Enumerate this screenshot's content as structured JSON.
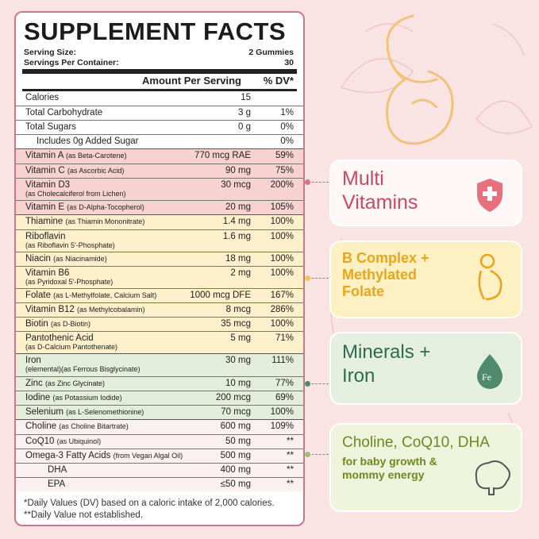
{
  "label": {
    "title": "SUPPLEMENT FACTS",
    "serving_size": {
      "label": "Serving Size:",
      "value": "2 Gummies"
    },
    "servings_per_container": {
      "label": "Servings Per Container:",
      "value": "30"
    },
    "header": {
      "amount": "Amount Per Serving",
      "dv": "% DV*"
    },
    "groups": [
      {
        "rows": [
          {
            "name": "Calories",
            "amount": "15"
          },
          {
            "name": "Total Carbohydrate",
            "amount": "3 g",
            "dv": "1%"
          },
          {
            "name": "Total Sugars",
            "amount": "0 g",
            "dv": "0%"
          },
          {
            "name": "Includes 0g Added Sugar",
            "dv": "0%"
          }
        ]
      },
      {
        "rows": [
          {
            "name": "Vitamin A",
            "note": "(as Beta-Carotene)",
            "amount": "770 mcg RAE",
            "dv": "59%"
          },
          {
            "name": "Vitamin C",
            "note": "(as Ascorbic Acid)",
            "amount": "90 mg",
            "dv": "75%"
          },
          {
            "name": "Vitamin D3",
            "sub": "(as Cholecalciferol from Lichen)",
            "amount": "30 mcg",
            "dv": "200%"
          },
          {
            "name": "Vitamin E",
            "note": "(as D-Alpha-Tocopherol)",
            "amount": "20 mg",
            "dv": "105%"
          }
        ]
      },
      {
        "rows": [
          {
            "name": "Thiamine",
            "note": "(as Thiamin Mononitrate)",
            "amount": "1.4 mg",
            "dv": "100%"
          },
          {
            "name": "Riboflavin",
            "sub": "(as Riboflavin 5'-Phosphate)",
            "amount": "1.6 mg",
            "dv": "100%"
          },
          {
            "name": "Niacin",
            "note": "(as Niacinamide)",
            "amount": "18 mg",
            "dv": "100%"
          },
          {
            "name": "Vitamin B6",
            "sub": "(as Pyridoxal 5'-Phosphate)",
            "amount": "2 mg",
            "dv": "100%"
          },
          {
            "name": "Folate",
            "note": "(as L-Methylfolate, Calcium Salt)",
            "amount": "1000 mcg DFE",
            "dv": "167%"
          },
          {
            "name": "Vitamin B12",
            "note": "(as Methylcobalamin)",
            "amount": "8 mcg",
            "dv": "286%"
          },
          {
            "name": "Biotin",
            "note": "(as D-Biotin)",
            "amount": "35 mcg",
            "dv": "100%"
          },
          {
            "name": "Pantothenic Acid",
            "sub": "(as D-Calcium Pantothenate)",
            "amount": "5 mg",
            "dv": "71%"
          }
        ]
      },
      {
        "rows": [
          {
            "name": "Iron",
            "sub": "(elemental)(as Ferrous Bisglycinate)",
            "amount": "30 mg",
            "dv": "111%"
          },
          {
            "name": "Zinc",
            "note": "(as Zinc Glycinate)",
            "amount": "10 mg",
            "dv": "77%"
          },
          {
            "name": "Iodine",
            "note": "(as Potassium Iodide)",
            "amount": "200 mcg",
            "dv": "69%"
          },
          {
            "name": "Selenium",
            "note": "(as L-Selenomethionine)",
            "amount": "70 mcg",
            "dv": "100%"
          }
        ]
      },
      {
        "rows": [
          {
            "name": "Choline",
            "note": "(as Choline Bitartrate)",
            "amount": "600 mg",
            "dv": "109%"
          },
          {
            "name": "CoQ10",
            "note": "(as Ubiquinol)",
            "amount": "50 mg",
            "dv": "**"
          },
          {
            "name": "Omega-3 Fatty Acids",
            "note": "(from Vegan Algal Oil)",
            "amount": "500 mg",
            "dv": "**"
          },
          {
            "name": "DHA",
            "amount": "400 mg",
            "dv": "**"
          },
          {
            "name": "EPA",
            "amount": "≤50 mg",
            "dv": "**"
          }
        ]
      }
    ],
    "footnotes": [
      "*Daily Values (DV) based on a caloric intake of 2,000 calories.",
      "**Daily Value not established."
    ]
  },
  "callouts": [
    {
      "lines": [
        "Multi",
        "Vitamins"
      ]
    },
    {
      "lines": [
        "B Complex +",
        "Methylated",
        "Folate"
      ]
    },
    {
      "lines": [
        "Minerals +",
        "Iron"
      ],
      "icon": "Fe"
    },
    {
      "lines": [
        "Choline, CoQ10, DHA"
      ],
      "sub": [
        "for baby growth &",
        "mommy energy"
      ]
    }
  ]
}
